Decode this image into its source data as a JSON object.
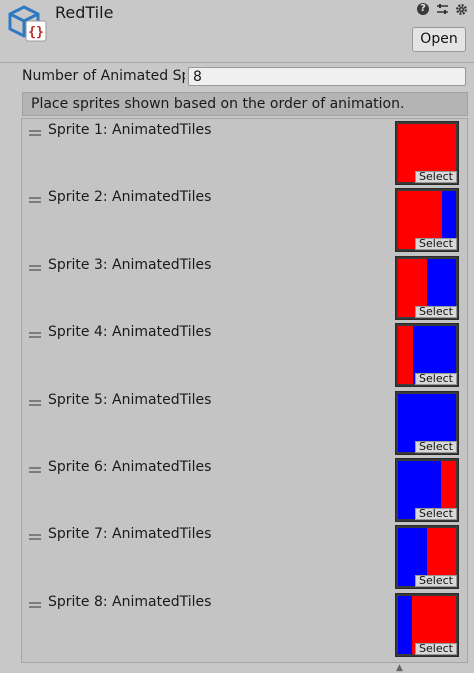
{
  "header": {
    "title": "RedTile",
    "open_label": "Open",
    "icons": [
      "asset-icon",
      "help-icon",
      "sliders-icon",
      "gear-icon"
    ]
  },
  "animation": {
    "number_label": "Number of Animated Sprites",
    "number_value": "8",
    "help_text": "Place sprites shown based on the order of animation."
  },
  "sprites": [
    {
      "label": "Sprite 1: AnimatedTiles",
      "select_label": "Select",
      "red_fraction": 1.0,
      "order": "red-blue"
    },
    {
      "label": "Sprite 2: AnimatedTiles",
      "select_label": "Select",
      "red_fraction": 0.75,
      "order": "red-blue"
    },
    {
      "label": "Sprite 3: AnimatedTiles",
      "select_label": "Select",
      "red_fraction": 0.5,
      "order": "red-blue"
    },
    {
      "label": "Sprite 4: AnimatedTiles",
      "select_label": "Select",
      "red_fraction": 0.25,
      "order": "red-blue"
    },
    {
      "label": "Sprite 5: AnimatedTiles",
      "select_label": "Select",
      "red_fraction": 0.0,
      "order": "red-blue"
    },
    {
      "label": "Sprite 6: AnimatedTiles",
      "select_label": "Select",
      "red_fraction": 0.25,
      "order": "blue-red"
    },
    {
      "label": "Sprite 7: AnimatedTiles",
      "select_label": "Select",
      "red_fraction": 0.5,
      "order": "blue-red"
    },
    {
      "label": "Sprite 8: AnimatedTiles",
      "select_label": "Select",
      "red_fraction": 0.75,
      "order": "blue-red"
    }
  ],
  "colors": {
    "red": "#ff0000",
    "blue": "#0000ff",
    "icon_blue": "#2e7ac2",
    "icon_red": "#c0282a"
  }
}
